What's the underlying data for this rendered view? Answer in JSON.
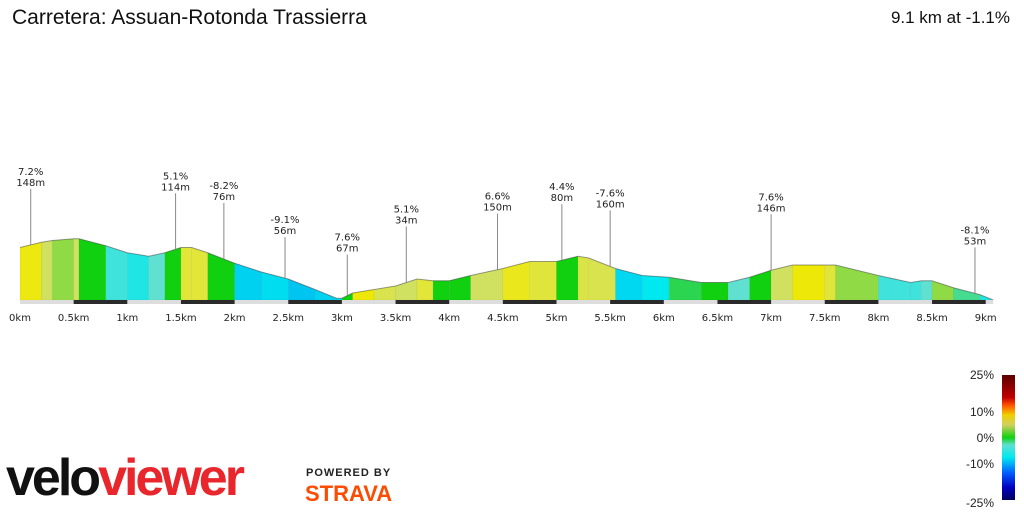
{
  "header": {
    "title": "Carretera: Assuan-Rotonda Trassierra",
    "summary": "9.1 km at -1.1%"
  },
  "chart_data": {
    "type": "area",
    "xlabel": "",
    "ylabel": "",
    "x_ticks": [
      "0km",
      "0.5km",
      "1km",
      "1.5km",
      "2km",
      "2.5km",
      "3km",
      "3.5km",
      "4km",
      "4.5km",
      "5km",
      "5.5km",
      "6km",
      "6.5km",
      "7km",
      "7.5km",
      "8km",
      "8.5km",
      "9km"
    ],
    "xlim": [
      0,
      9.07
    ],
    "profile": [
      [
        0,
        30
      ],
      [
        0.2,
        33
      ],
      [
        0.3,
        34
      ],
      [
        0.5,
        35
      ],
      [
        0.55,
        35
      ],
      [
        0.8,
        31
      ],
      [
        1.0,
        27
      ],
      [
        1.2,
        25
      ],
      [
        1.35,
        27
      ],
      [
        1.5,
        30
      ],
      [
        1.6,
        30
      ],
      [
        1.75,
        27
      ],
      [
        2.0,
        21
      ],
      [
        2.25,
        16
      ],
      [
        2.5,
        12
      ],
      [
        2.75,
        6
      ],
      [
        2.95,
        1
      ],
      [
        3.0,
        1
      ],
      [
        3.1,
        4
      ],
      [
        3.3,
        6
      ],
      [
        3.5,
        8
      ],
      [
        3.7,
        12
      ],
      [
        3.85,
        11
      ],
      [
        4.0,
        11
      ],
      [
        4.2,
        14
      ],
      [
        4.5,
        18
      ],
      [
        4.75,
        22
      ],
      [
        5.0,
        22
      ],
      [
        5.2,
        25
      ],
      [
        5.3,
        24
      ],
      [
        5.55,
        18
      ],
      [
        5.8,
        14
      ],
      [
        6.05,
        13
      ],
      [
        6.35,
        10
      ],
      [
        6.6,
        10
      ],
      [
        6.8,
        13
      ],
      [
        7.0,
        17
      ],
      [
        7.2,
        20
      ],
      [
        7.5,
        20
      ],
      [
        7.6,
        20
      ],
      [
        8.0,
        14
      ],
      [
        8.3,
        10
      ],
      [
        8.4,
        11
      ],
      [
        8.5,
        11
      ],
      [
        8.7,
        7
      ],
      [
        8.95,
        3
      ],
      [
        9.07,
        0
      ]
    ],
    "segment_grades": [
      7.2,
      3,
      2,
      3,
      0,
      -4,
      -5,
      -3,
      0,
      5.1,
      5.1,
      0,
      -8.2,
      -7,
      -9.1,
      -8,
      -6,
      0,
      7.6,
      4,
      3,
      5.1,
      0,
      0,
      3,
      6.6,
      5,
      0,
      4.4,
      4,
      -7.6,
      -6,
      -1,
      0,
      -3,
      0,
      3,
      7.6,
      5,
      2,
      -4,
      -4,
      -3,
      2,
      -2,
      -5,
      -8.1
    ],
    "annotations": [
      {
        "km": 0.1,
        "grade": "7.2%",
        "elev": "148m"
      },
      {
        "km": 1.45,
        "grade": "5.1%",
        "elev": "114m"
      },
      {
        "km": 1.9,
        "grade": "-8.2%",
        "elev": "76m"
      },
      {
        "km": 2.47,
        "grade": "-9.1%",
        "elev": "56m"
      },
      {
        "km": 3.05,
        "grade": "7.6%",
        "elev": "67m"
      },
      {
        "km": 3.6,
        "grade": "5.1%",
        "elev": "34m"
      },
      {
        "km": 4.45,
        "grade": "6.6%",
        "elev": "150m"
      },
      {
        "km": 5.05,
        "grade": "4.4%",
        "elev": "80m"
      },
      {
        "km": 5.5,
        "grade": "-7.6%",
        "elev": "160m"
      },
      {
        "km": 7.0,
        "grade": "7.6%",
        "elev": "146m"
      },
      {
        "km": 8.9,
        "grade": "-8.1%",
        "elev": "53m"
      }
    ],
    "legend": {
      "type": "colorbar",
      "labels": [
        "25%",
        "10%",
        "0%",
        "-10%",
        "-25%"
      ]
    }
  },
  "branding": {
    "logo_part1": "velo",
    "logo_part2": "viewer",
    "powered_by": "POWERED BY",
    "strava": "STRAVA"
  }
}
